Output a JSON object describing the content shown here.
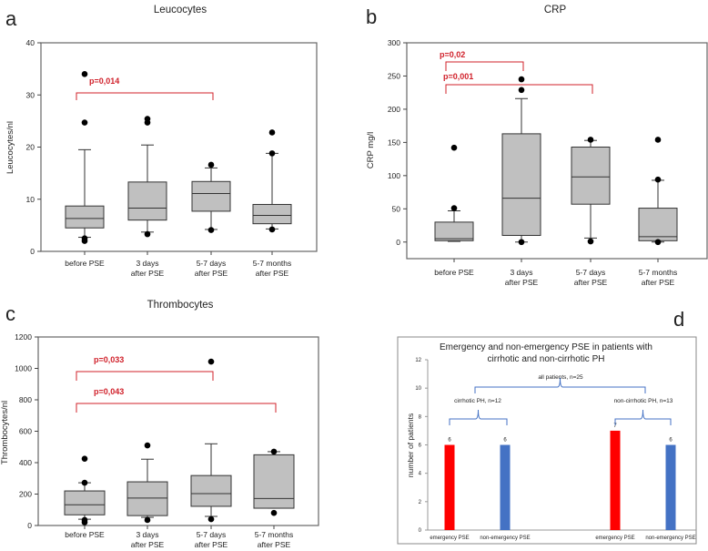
{
  "chart_data": [
    {
      "panel_label": "a",
      "type": "boxplot",
      "title": "Leucocytes",
      "ylabel": "Leucocytes/nl",
      "ylim": [
        0,
        40
      ],
      "yticks": [
        0,
        10,
        20,
        30,
        40
      ],
      "categories": [
        [
          "before PSE"
        ],
        [
          "3 days",
          "after PSE"
        ],
        [
          "5-7 days",
          "after PSE"
        ],
        [
          "5-7 months",
          "after PSE"
        ]
      ],
      "boxes": [
        {
          "whisker_low": 2.7,
          "q1": 4.5,
          "median": 6.3,
          "q3": 8.7,
          "whisker_high": 19.5,
          "outliers": [
            34,
            24.7,
            2.5,
            2.0
          ]
        },
        {
          "whisker_low": 3.7,
          "q1": 6.0,
          "median": 8.3,
          "q3": 13.3,
          "whisker_high": 20.4,
          "outliers": [
            25.4,
            24.7,
            3.3
          ]
        },
        {
          "whisker_low": 4.2,
          "q1": 7.7,
          "median": 11.1,
          "q3": 13.4,
          "whisker_high": 16.0,
          "outliers": [
            16.6,
            4.1
          ]
        },
        {
          "whisker_low": 4.3,
          "q1": 5.3,
          "median": 6.9,
          "q3": 9.0,
          "whisker_high": 18.8,
          "outliers": [
            22.8,
            18.8,
            4.2
          ]
        }
      ],
      "significance": [
        {
          "from": 0,
          "to": 2,
          "label": "p=0,014"
        }
      ],
      "box_color": "#c0c0c0",
      "significance_color": "#d0202a"
    },
    {
      "panel_label": "b",
      "type": "boxplot",
      "title": "CRP",
      "ylabel": "CRP mg/l",
      "ylim": [
        -25,
        300
      ],
      "yticks": [
        0,
        50,
        100,
        150,
        200,
        250,
        300
      ],
      "categories": [
        [
          "before PSE"
        ],
        [
          "3 days",
          "after PSE"
        ],
        [
          "5-7 days",
          "after PSE"
        ],
        [
          "5-7 months",
          "after PSE"
        ]
      ],
      "boxes": [
        {
          "whisker_low": 1,
          "q1": 2,
          "median": 5,
          "q3": 30,
          "whisker_high": 47,
          "outliers": [
            142,
            51
          ]
        },
        {
          "whisker_low": 0,
          "q1": 10,
          "median": 66,
          "q3": 163,
          "whisker_high": 216,
          "outliers": [
            245,
            229,
            0
          ]
        },
        {
          "whisker_low": 6,
          "q1": 57,
          "median": 98,
          "q3": 143,
          "whisker_high": 153,
          "outliers": [
            154,
            1
          ]
        },
        {
          "whisker_low": 0,
          "q1": 2,
          "median": 8,
          "q3": 51,
          "whisker_high": 93,
          "outliers": [
            154,
            94,
            0
          ]
        }
      ],
      "significance": [
        {
          "from": 0,
          "to": 1,
          "label": "p=0,02"
        },
        {
          "from": 0,
          "to": 2,
          "label": "p=0,001"
        }
      ],
      "box_color": "#c0c0c0",
      "significance_color": "#d0202a"
    },
    {
      "panel_label": "c",
      "type": "boxplot",
      "title": "Thrombocytes",
      "ylabel": "Thrombocytes/nl",
      "ylim": [
        0,
        1200
      ],
      "yticks": [
        0,
        200,
        400,
        600,
        800,
        1000,
        1200
      ],
      "categories": [
        [
          "before PSE"
        ],
        [
          "3 days",
          "after PSE"
        ],
        [
          "5-7 days",
          "after PSE"
        ],
        [
          "5-7 months",
          "after PSE"
        ]
      ],
      "boxes": [
        {
          "whisker_low": 40,
          "q1": 68,
          "median": 132,
          "q3": 220,
          "whisker_high": 272,
          "outliers": [
            425,
            272,
            35,
            20
          ]
        },
        {
          "whisker_low": 52,
          "q1": 63,
          "median": 175,
          "q3": 278,
          "whisker_high": 422,
          "outliers": [
            510,
            35
          ]
        },
        {
          "whisker_low": 58,
          "q1": 122,
          "median": 203,
          "q3": 318,
          "whisker_high": 520,
          "outliers": [
            1043,
            40
          ]
        },
        {
          "whisker_low": 110,
          "q1": 110,
          "median": 172,
          "q3": 450,
          "whisker_high": 470,
          "outliers": [
            470,
            80
          ]
        }
      ],
      "significance": [
        {
          "from": 0,
          "to": 2,
          "label": "p=0,033"
        },
        {
          "from": 0,
          "to": 3,
          "label": "p=0,043"
        }
      ],
      "box_color": "#c0c0c0",
      "significance_color": "#d0202a"
    },
    {
      "panel_label": "d",
      "type": "bar",
      "title": [
        "Emergency and non-emergency PSE in patients with",
        "cirrhotic and non-cirrhotic PH"
      ],
      "ylabel": "number of patients",
      "ylim": [
        0,
        12
      ],
      "yticks": [
        0,
        2,
        4,
        6,
        8,
        10,
        12
      ],
      "categories": [
        "emergency PSE",
        "non-emergency PSE",
        "emergency PSE",
        "non-emergency PSE"
      ],
      "values": [
        6,
        6,
        7,
        6
      ],
      "colors": [
        "#ff0000",
        "#4472c4",
        "#ff0000",
        "#4472c4"
      ],
      "groups": [
        {
          "label": "cirrhotic PH, n=12",
          "from": 0,
          "to": 1
        },
        {
          "label": "non-cirrhotic PH, n=13",
          "from": 2,
          "to": 3
        },
        {
          "label": "all patients, n=25",
          "from": 0,
          "to": 3
        }
      ],
      "brace_color": "#4472c4"
    }
  ]
}
